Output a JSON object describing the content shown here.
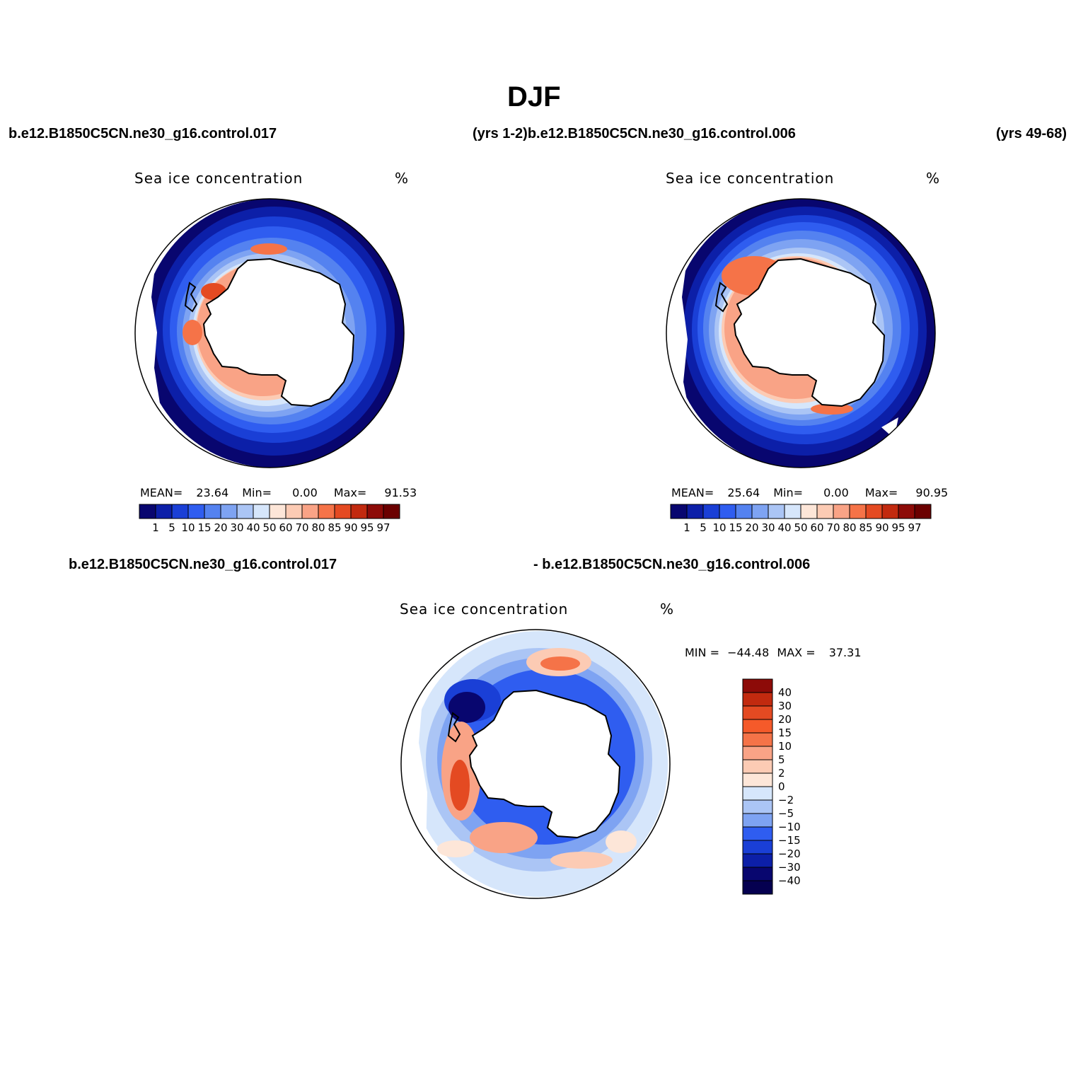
{
  "title": "DJF",
  "case_titles": {
    "top_left": "b.e12.B1850C5CN.ne30_g16.control.017",
    "top_mid": "(yrs 1-2)b.e12.B1850C5CN.ne30_g16.control.006",
    "top_right": "(yrs 49-68)",
    "bottom_left": "b.e12.B1850C5CN.ne30_g16.control.017",
    "bottom_right": "- b.e12.B1850C5CN.ne30_g16.control.006"
  },
  "panels": [
    {
      "label": "Sea ice concentration",
      "units": "%",
      "mean_label": "MEAN=",
      "mean": "23.64",
      "min_label": "Min=",
      "min": "0.00",
      "max_label": "Max=",
      "max": "91.53"
    },
    {
      "label": "Sea ice concentration",
      "units": "%",
      "mean_label": "MEAN=",
      "mean": "25.64",
      "min_label": "Min=",
      "min": "0.00",
      "max_label": "Max=",
      "max": "90.95"
    },
    {
      "label": "Sea ice concentration",
      "units": "%",
      "min_label": "MIN =",
      "min": "−44.48",
      "max_label": "MAX =",
      "max": "37.31"
    }
  ],
  "colorbars": {
    "concentration": {
      "levels": [
        "1",
        "5",
        "10",
        "15",
        "20",
        "30",
        "40",
        "50",
        "60",
        "70",
        "80",
        "85",
        "90",
        "95",
        "97"
      ],
      "colors": [
        "#08066f",
        "#0c1fa8",
        "#1a3fd6",
        "#2f5df0",
        "#5482f0",
        "#7ea3f2",
        "#abc5f5",
        "#d6e6fb",
        "#fde6d8",
        "#fccbb4",
        "#f9a386",
        "#f57348",
        "#e44a22",
        "#c22a0f",
        "#8d0b08",
        "#6b0000"
      ]
    },
    "difference": {
      "levels": [
        "40",
        "30",
        "20",
        "15",
        "10",
        "5",
        "2",
        "0",
        "−2",
        "−5",
        "−10",
        "−15",
        "−20",
        "−30",
        "−40"
      ],
      "colors": [
        "#8d0b08",
        "#c22a0f",
        "#e44a22",
        "#f55a2a",
        "#f57348",
        "#f9a386",
        "#fccbb4",
        "#fde6d8",
        "#d6e6fb",
        "#abc5f5",
        "#7ea3f2",
        "#2f5df0",
        "#1a3fd6",
        "#0c1fa8",
        "#08066f",
        "#050050"
      ]
    }
  }
}
